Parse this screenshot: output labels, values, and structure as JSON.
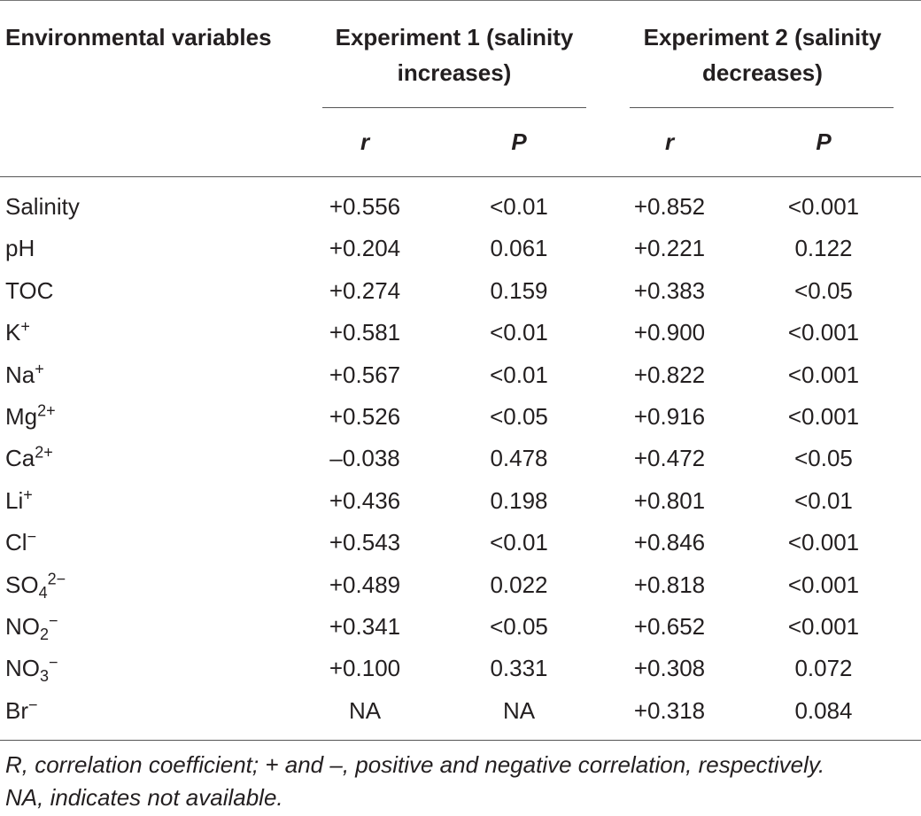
{
  "header": {
    "variables": "Environmental variables",
    "exp1_line1": "Experiment 1 (salinity",
    "exp1_line2": "increases)",
    "exp2_line1": "Experiment 2 (salinity",
    "exp2_line2": "decreases)",
    "sub_r": "r",
    "sub_p": "P"
  },
  "rows": [
    {
      "base": "Salinity",
      "sub": "",
      "sup": "",
      "r1": "+0.556",
      "p1": "<0.01",
      "r2": "+0.852",
      "p2": "<0.001"
    },
    {
      "base": "pH",
      "sub": "",
      "sup": "",
      "r1": "+0.204",
      "p1": "0.061",
      "r2": "+0.221",
      "p2": "0.122"
    },
    {
      "base": "TOC",
      "sub": "",
      "sup": "",
      "r1": "+0.274",
      "p1": "0.159",
      "r2": "+0.383",
      "p2": "<0.05"
    },
    {
      "base": "K",
      "sub": "",
      "sup": "+",
      "r1": "+0.581",
      "p1": "<0.01",
      "r2": "+0.900",
      "p2": "<0.001"
    },
    {
      "base": "Na",
      "sub": "",
      "sup": "+",
      "r1": "+0.567",
      "p1": "<0.01",
      "r2": "+0.822",
      "p2": "<0.001"
    },
    {
      "base": "Mg",
      "sub": "",
      "sup": "2+",
      "r1": "+0.526",
      "p1": "<0.05",
      "r2": "+0.916",
      "p2": "<0.001"
    },
    {
      "base": "Ca",
      "sub": "",
      "sup": "2+",
      "r1": "–0.038",
      "p1": "0.478",
      "r2": "+0.472",
      "p2": "<0.05"
    },
    {
      "base": "Li",
      "sub": "",
      "sup": "+",
      "r1": "+0.436",
      "p1": "0.198",
      "r2": "+0.801",
      "p2": "<0.01"
    },
    {
      "base": "Cl",
      "sub": "",
      "sup": "−",
      "r1": "+0.543",
      "p1": "<0.01",
      "r2": "+0.846",
      "p2": "<0.001"
    },
    {
      "base": "SO",
      "sub": "4",
      "sup": "2−",
      "r1": "+0.489",
      "p1": "0.022",
      "r2": "+0.818",
      "p2": "<0.001"
    },
    {
      "base": "NO",
      "sub": "2",
      "sup": "−",
      "r1": "+0.341",
      "p1": "<0.05",
      "r2": "+0.652",
      "p2": "<0.001"
    },
    {
      "base": "NO",
      "sub": "3",
      "sup": "−",
      "r1": "+0.100",
      "p1": "0.331",
      "r2": "+0.308",
      "p2": "0.072"
    },
    {
      "base": "Br",
      "sub": "",
      "sup": "−",
      "r1": "NA",
      "p1": "NA",
      "r2": "+0.318",
      "p2": "0.084"
    }
  ],
  "footnote": {
    "line1": "R, correlation coefficient; + and –, positive and negative correlation, respectively.",
    "line2": "NA, indicates not available."
  }
}
